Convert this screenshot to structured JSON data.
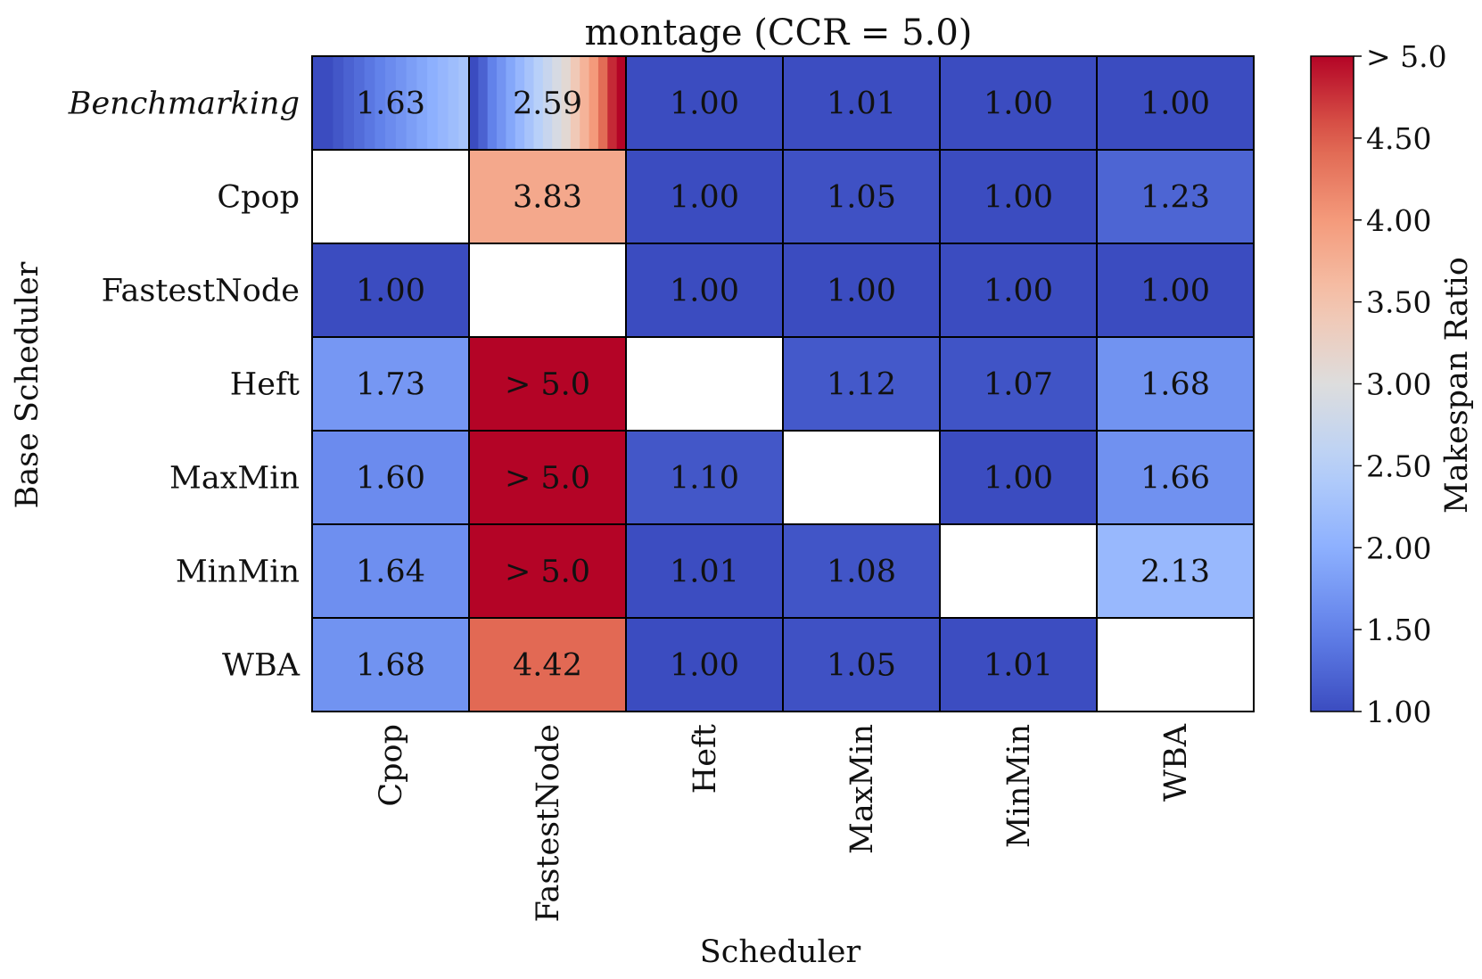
{
  "chart_data": {
    "type": "heatmap",
    "title": "montage (CCR = 5.0)",
    "xlabel": "Scheduler",
    "ylabel": "Base Scheduler",
    "columns": [
      "Cpop",
      "FastestNode",
      "Heft",
      "MaxMin",
      "MinMin",
      "WBA"
    ],
    "rows": [
      "Benchmarking",
      "Cpop",
      "FastestNode",
      "Heft",
      "MaxMin",
      "MinMin",
      "WBA"
    ],
    "values": [
      [
        1.63,
        2.59,
        1.0,
        1.01,
        1.0,
        1.0
      ],
      [
        null,
        3.83,
        1.0,
        1.05,
        1.0,
        1.23
      ],
      [
        1.0,
        null,
        1.0,
        1.0,
        1.0,
        1.0
      ],
      [
        1.73,
        5.0,
        null,
        1.12,
        1.07,
        1.68
      ],
      [
        1.6,
        5.0,
        1.1,
        null,
        1.0,
        1.66
      ],
      [
        1.64,
        5.0,
        1.01,
        1.08,
        null,
        2.13
      ],
      [
        1.68,
        4.42,
        1.0,
        1.05,
        1.01,
        null
      ]
    ],
    "labels": [
      [
        "1.63",
        "2.59",
        "1.00",
        "1.01",
        "1.00",
        "1.00"
      ],
      [
        "",
        "3.83",
        "1.00",
        "1.05",
        "1.00",
        "1.23"
      ],
      [
        "1.00",
        "",
        "1.00",
        "1.00",
        "1.00",
        "1.00"
      ],
      [
        "1.73",
        "> 5.0",
        "",
        "1.12",
        "1.07",
        "1.68"
      ],
      [
        "1.60",
        "> 5.0",
        "1.10",
        "",
        "1.00",
        "1.66"
      ],
      [
        "1.64",
        "> 5.0",
        "1.01",
        "1.08",
        "",
        "2.13"
      ],
      [
        "1.68",
        "4.42",
        "1.00",
        "1.05",
        "1.01",
        ""
      ]
    ],
    "benchmark_row_gradient": {
      "Cpop": [
        1.0,
        1.0,
        1.1,
        1.2,
        1.3,
        1.4,
        1.5,
        1.6,
        1.7,
        1.8,
        1.9,
        2.0,
        2.1,
        2.2,
        2.3
      ],
      "FastestNode": [
        1.0,
        1.2,
        1.5,
        1.7,
        1.9,
        2.1,
        2.3,
        2.5,
        2.7,
        2.9,
        3.1,
        3.4,
        3.7,
        4.0,
        4.4,
        4.8,
        5.0
      ]
    },
    "colorbar": {
      "label": "Makespan Ratio",
      "range": [
        1.0,
        5.0
      ],
      "ticks": [
        1.0,
        1.5,
        2.0,
        2.5,
        3.0,
        3.5,
        4.0,
        4.5,
        5.0
      ],
      "tick_labels": [
        "1.00",
        "1.50",
        "2.00",
        "2.50",
        "3.00",
        "3.50",
        "4.00",
        "4.50",
        "> 5.0"
      ],
      "colormap": "coolwarm"
    }
  }
}
